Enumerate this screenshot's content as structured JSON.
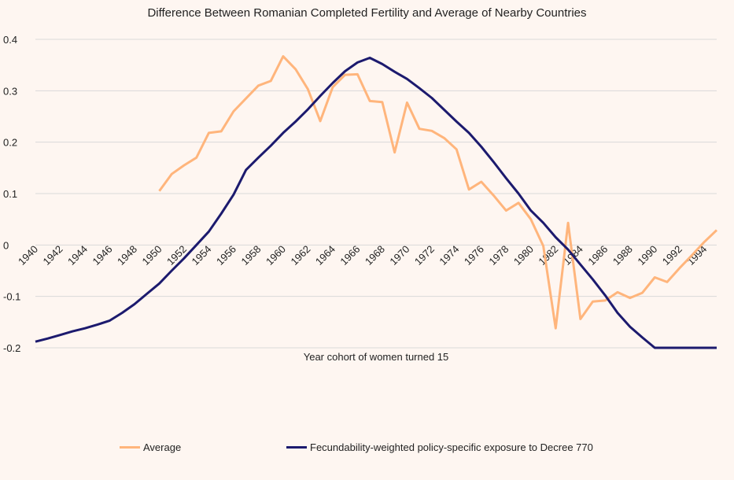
{
  "chart_data": {
    "type": "line",
    "title": "Difference Between Romanian Completed Fertility and Average of Nearby Countries",
    "xlabel": "Year cohort of women turned 15",
    "ylabel": "",
    "xlim": [
      1940,
      1995
    ],
    "ylim": [
      -0.2,
      0.4
    ],
    "yticks": [
      -0.2,
      -0.1,
      0,
      0.1,
      0.2,
      0.3,
      0.4
    ],
    "ytick_labels": [
      "-0.2",
      "-0.1",
      "0",
      "0.1",
      "0.2",
      "0.3",
      "0.4"
    ],
    "xticks": [
      1940,
      1942,
      1944,
      1946,
      1948,
      1950,
      1952,
      1954,
      1956,
      1958,
      1960,
      1962,
      1964,
      1966,
      1968,
      1970,
      1972,
      1974,
      1976,
      1978,
      1980,
      1982,
      1984,
      1986,
      1988,
      1990,
      1992,
      1994
    ],
    "grid": true,
    "legend_position": "bottom",
    "series": [
      {
        "name": "Average",
        "color": "#ffb57c",
        "x_start": 1950,
        "values": [
          0.105,
          0.138,
          0.155,
          0.17,
          0.218,
          0.221,
          0.26,
          0.285,
          0.31,
          0.319,
          0.367,
          0.342,
          0.303,
          0.241,
          0.307,
          0.331,
          0.332,
          0.28,
          0.278,
          0.18,
          0.277,
          0.226,
          0.222,
          0.208,
          0.186,
          0.108,
          0.123,
          0.096,
          0.067,
          0.082,
          0.05,
          -0.002,
          -0.162,
          0.043,
          -0.144,
          -0.11,
          -0.108,
          -0.092,
          -0.103,
          -0.093,
          -0.063,
          -0.072,
          -0.045,
          -0.02,
          0.006,
          0.029
        ]
      },
      {
        "name": "Fecundability-weighted policy-specific exposure to Decree 770",
        "color": "#1c1a6e",
        "x_start": 1940,
        "values": [
          -0.188,
          -0.182,
          -0.175,
          -0.168,
          -0.162,
          -0.155,
          -0.147,
          -0.132,
          -0.115,
          -0.095,
          -0.075,
          -0.05,
          -0.026,
          0.0,
          0.026,
          0.061,
          0.098,
          0.146,
          0.17,
          0.193,
          0.218,
          0.24,
          0.264,
          0.29,
          0.315,
          0.338,
          0.355,
          0.364,
          0.352,
          0.337,
          0.323,
          0.305,
          0.286,
          0.263,
          0.24,
          0.218,
          0.191,
          0.161,
          0.13,
          0.1,
          0.067,
          0.043,
          0.015,
          -0.009,
          -0.038,
          -0.067,
          -0.098,
          -0.132,
          -0.159,
          -0.18,
          -0.2,
          -0.2,
          -0.2,
          -0.2,
          -0.2,
          -0.2
        ]
      }
    ]
  }
}
